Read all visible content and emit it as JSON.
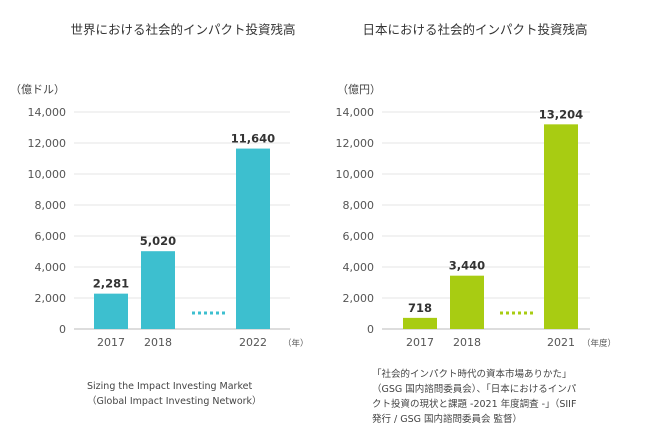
{
  "chart_data": [
    {
      "type": "bar",
      "title": "世界における社会的インパクト投資残高",
      "unit_label": "（億ドル）",
      "xunit": "（年）",
      "categories": [
        "2017",
        "2018",
        "2022"
      ],
      "values": [
        2281,
        5020,
        11640
      ],
      "value_labels": [
        "2,281",
        "5,020",
        "11,640"
      ],
      "ylim": [
        0,
        14000
      ],
      "yticks": [
        "0",
        "2,000",
        "4,000",
        "6,000",
        "8,000",
        "10,000",
        "12,000",
        "14,000"
      ],
      "grid": true,
      "bar_color": "#3dbfcf",
      "gap_after_index": 1,
      "source_lines": [
        "Sizing the Impact Investing Market",
        "（Global Impact Investing Network）"
      ]
    },
    {
      "type": "bar",
      "title": "日本における社会的インパクト投資残高",
      "unit_label": "（億円）",
      "xunit": "（年度）",
      "categories": [
        "2017",
        "2018",
        "2021"
      ],
      "values": [
        718,
        3440,
        13204
      ],
      "value_labels": [
        "718",
        "3,440",
        "13,204"
      ],
      "ylim": [
        0,
        14000
      ],
      "yticks": [
        "0",
        "2,000",
        "4,000",
        "6,000",
        "8,000",
        "10,000",
        "12,000",
        "14,000"
      ],
      "grid": true,
      "bar_color": "#a8cc12",
      "gap_after_index": 1,
      "source_lines": [
        "「社会的インパクト時代の資本市場ありかた」",
        "（GSG 国内諮問委員会）、「日本におけるインパ",
        "クト投資の現状と課題 -2021 年度調査 -」（SIIF",
        "発行 / GSG 国内諮問委員会 監督）"
      ]
    }
  ]
}
